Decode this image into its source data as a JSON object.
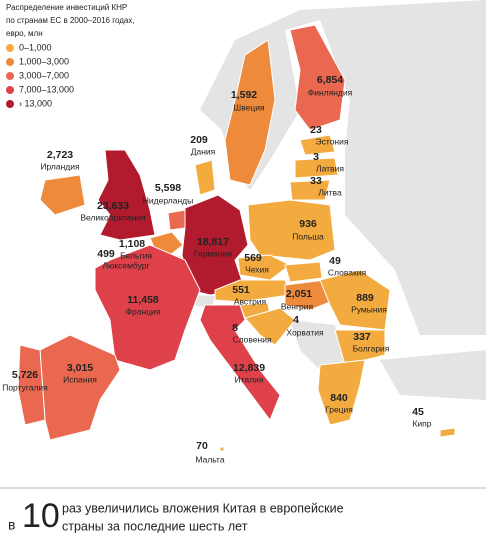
{
  "title": [
    "Распределение инвестиций КНР",
    "по странам ЕС в 2000–2016 годах,",
    "евро, млн"
  ],
  "legend": [
    {
      "label": "0–1,000",
      "color": "#f3ab3f"
    },
    {
      "label": "1,000–3,000",
      "color": "#ee8a3c"
    },
    {
      "label": "3,000–7,000",
      "color": "#ea6750"
    },
    {
      "label": "7,000–13,000",
      "color": "#de4149"
    },
    {
      "label": "› 13,000",
      "color": "#b21b2e"
    }
  ],
  "countries": [
    {
      "name": "Ирландия",
      "value": 2723,
      "label": "2,723",
      "class": 1
    },
    {
      "name": "Великобритания",
      "value": 23633,
      "label": "23,633",
      "class": 4
    },
    {
      "name": "Нидерланды",
      "value": 5598,
      "label": "5,598",
      "class": 2
    },
    {
      "name": "Бельгия",
      "value": 1108,
      "label": "1,108",
      "class": 1
    },
    {
      "name": "Люксембург",
      "value": 499,
      "class": 0
    },
    {
      "name": "Германия",
      "value": 18817,
      "label": "18,817",
      "class": 4
    },
    {
      "name": "Дания",
      "value": 209,
      "class": 0
    },
    {
      "name": "Швеция",
      "value": 1592,
      "label": "1,592",
      "class": 1
    },
    {
      "name": "Финляндия",
      "value": 6854,
      "label": "6,854",
      "class": 2
    },
    {
      "name": "Эстония",
      "value": 23,
      "class": 0
    },
    {
      "name": "Латвия",
      "value": 3,
      "class": 0
    },
    {
      "name": "Литва",
      "value": 33,
      "class": 0
    },
    {
      "name": "Польша",
      "value": 936,
      "class": 0
    },
    {
      "name": "Чехия",
      "value": 569,
      "class": 0
    },
    {
      "name": "Словакия",
      "value": 49,
      "class": 0
    },
    {
      "name": "Австрия",
      "value": 551,
      "class": 0
    },
    {
      "name": "Венгрия",
      "value": 2051,
      "label": "2,051",
      "class": 1
    },
    {
      "name": "Румыния",
      "value": 889,
      "class": 0
    },
    {
      "name": "Словения",
      "value": 8,
      "class": 0
    },
    {
      "name": "Хорватия",
      "value": 4,
      "class": 0
    },
    {
      "name": "Болгария",
      "value": 337,
      "class": 0
    },
    {
      "name": "Франция",
      "value": 11458,
      "label": "11,458",
      "class": 3
    },
    {
      "name": "Испания",
      "value": 3015,
      "label": "3,015",
      "class": 2
    },
    {
      "name": "Португалия",
      "value": 5726,
      "label": "5,726",
      "class": 2
    },
    {
      "name": "Италия",
      "value": 12839,
      "label": "12,839",
      "class": 3
    },
    {
      "name": "Греция",
      "value": 840,
      "class": 0
    },
    {
      "name": "Кипр",
      "value": 45,
      "class": 0
    },
    {
      "name": "Мальта",
      "value": 70,
      "class": 0
    }
  ],
  "footer": {
    "prefix": "в",
    "number": 10,
    "lines": [
      "раз увеличились вложения Китая в европейские",
      "страны за последние шесть лет"
    ]
  }
}
